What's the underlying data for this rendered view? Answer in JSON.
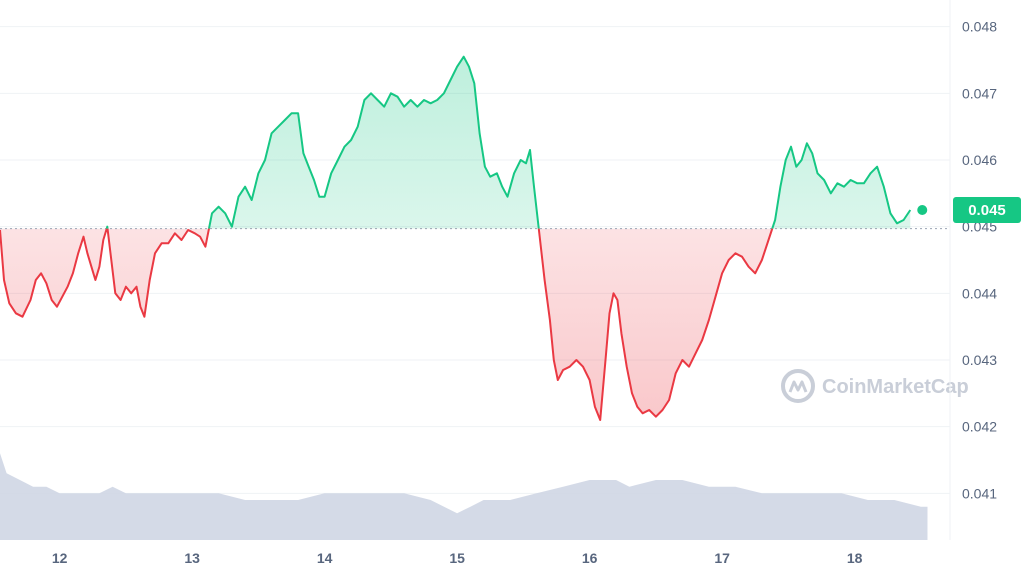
{
  "colors": {
    "up": "#16c784",
    "down": "#ea3943",
    "volume": "#cfd6e4",
    "grid": "#eff2f5",
    "baseline": "#9aa3b2",
    "axis_text": "#58667e",
    "watermark": "#c9ced8"
  },
  "watermark": {
    "text": "CoinMarketCap",
    "icon": "coinmarketcap-logo-icon"
  },
  "price_badge": {
    "label": "0.045"
  },
  "chart_data": {
    "type": "line",
    "title": "",
    "xlabel": "",
    "ylabel": "",
    "baseline": 0.04497,
    "ylim": [
      0.0403,
      0.0484
    ],
    "xlim": [
      11.55,
      18.72
    ],
    "x_ticks": [
      {
        "value": 12,
        "label": "12"
      },
      {
        "value": 13,
        "label": "13"
      },
      {
        "value": 14,
        "label": "14"
      },
      {
        "value": 15,
        "label": "15"
      },
      {
        "value": 16,
        "label": "16"
      },
      {
        "value": 17,
        "label": "17"
      },
      {
        "value": 18,
        "label": "18"
      }
    ],
    "y_ticks": [
      {
        "value": 0.048,
        "label": "0.048"
      },
      {
        "value": 0.047,
        "label": "0.047"
      },
      {
        "value": 0.046,
        "label": "0.046"
      },
      {
        "value": 0.045,
        "label": "0.045"
      },
      {
        "value": 0.044,
        "label": "0.044"
      },
      {
        "value": 0.043,
        "label": "0.043"
      },
      {
        "value": 0.042,
        "label": "0.042"
      },
      {
        "value": 0.041,
        "label": "0.041"
      }
    ],
    "grid": true,
    "series": [
      {
        "points": [
          [
            11.55,
            0.04495
          ],
          [
            11.58,
            0.0442
          ],
          [
            11.62,
            0.04385
          ],
          [
            11.67,
            0.0437
          ],
          [
            11.72,
            0.04365
          ],
          [
            11.78,
            0.0439
          ],
          [
            11.82,
            0.0442
          ],
          [
            11.86,
            0.0443
          ],
          [
            11.9,
            0.04415
          ],
          [
            11.94,
            0.0439
          ],
          [
            11.98,
            0.0438
          ],
          [
            12.02,
            0.04395
          ],
          [
            12.06,
            0.0441
          ],
          [
            12.1,
            0.0443
          ],
          [
            12.14,
            0.0446
          ],
          [
            12.18,
            0.04485
          ],
          [
            12.21,
            0.0446
          ],
          [
            12.24,
            0.0444
          ],
          [
            12.27,
            0.0442
          ],
          [
            12.3,
            0.0444
          ],
          [
            12.33,
            0.0448
          ],
          [
            12.36,
            0.045
          ],
          [
            12.39,
            0.0445
          ],
          [
            12.42,
            0.044
          ],
          [
            12.46,
            0.0439
          ],
          [
            12.5,
            0.0441
          ],
          [
            12.54,
            0.044
          ],
          [
            12.58,
            0.0441
          ],
          [
            12.61,
            0.0438
          ],
          [
            12.64,
            0.04365
          ],
          [
            12.68,
            0.0442
          ],
          [
            12.72,
            0.0446
          ],
          [
            12.77,
            0.04475
          ],
          [
            12.82,
            0.04475
          ],
          [
            12.87,
            0.0449
          ],
          [
            12.92,
            0.0448
          ],
          [
            12.97,
            0.04495
          ],
          [
            13.02,
            0.0449
          ],
          [
            13.06,
            0.04485
          ],
          [
            13.1,
            0.0447
          ],
          [
            13.15,
            0.0452
          ],
          [
            13.2,
            0.0453
          ],
          [
            13.25,
            0.0452
          ],
          [
            13.3,
            0.045
          ],
          [
            13.35,
            0.04545
          ],
          [
            13.4,
            0.0456
          ],
          [
            13.45,
            0.0454
          ],
          [
            13.5,
            0.0458
          ],
          [
            13.55,
            0.046
          ],
          [
            13.6,
            0.0464
          ],
          [
            13.65,
            0.0465
          ],
          [
            13.7,
            0.0466
          ],
          [
            13.75,
            0.0467
          ],
          [
            13.8,
            0.0467
          ],
          [
            13.84,
            0.0461
          ],
          [
            13.88,
            0.0459
          ],
          [
            13.92,
            0.0457
          ],
          [
            13.96,
            0.04545
          ],
          [
            14.0,
            0.04545
          ],
          [
            14.05,
            0.0458
          ],
          [
            14.1,
            0.046
          ],
          [
            14.15,
            0.0462
          ],
          [
            14.2,
            0.0463
          ],
          [
            14.25,
            0.0465
          ],
          [
            14.3,
            0.0469
          ],
          [
            14.35,
            0.047
          ],
          [
            14.4,
            0.0469
          ],
          [
            14.45,
            0.0468
          ],
          [
            14.5,
            0.047
          ],
          [
            14.55,
            0.04695
          ],
          [
            14.6,
            0.0468
          ],
          [
            14.65,
            0.0469
          ],
          [
            14.7,
            0.0468
          ],
          [
            14.75,
            0.0469
          ],
          [
            14.8,
            0.04685
          ],
          [
            14.85,
            0.0469
          ],
          [
            14.9,
            0.047
          ],
          [
            14.95,
            0.0472
          ],
          [
            15.0,
            0.0474
          ],
          [
            15.05,
            0.04755
          ],
          [
            15.09,
            0.0474
          ],
          [
            15.13,
            0.04715
          ],
          [
            15.17,
            0.0464
          ],
          [
            15.21,
            0.0459
          ],
          [
            15.25,
            0.04575
          ],
          [
            15.3,
            0.0458
          ],
          [
            15.34,
            0.0456
          ],
          [
            15.38,
            0.04545
          ],
          [
            15.43,
            0.0458
          ],
          [
            15.48,
            0.046
          ],
          [
            15.52,
            0.04595
          ],
          [
            15.55,
            0.04615
          ],
          [
            15.58,
            0.0456
          ],
          [
            15.62,
            0.0449
          ],
          [
            15.66,
            0.0442
          ],
          [
            15.7,
            0.0436
          ],
          [
            15.73,
            0.043
          ],
          [
            15.76,
            0.0427
          ],
          [
            15.8,
            0.04285
          ],
          [
            15.85,
            0.0429
          ],
          [
            15.9,
            0.043
          ],
          [
            15.95,
            0.0429
          ],
          [
            16.0,
            0.0427
          ],
          [
            16.04,
            0.0423
          ],
          [
            16.08,
            0.0421
          ],
          [
            16.12,
            0.043
          ],
          [
            16.15,
            0.0437
          ],
          [
            16.18,
            0.044
          ],
          [
            16.21,
            0.0439
          ],
          [
            16.24,
            0.0434
          ],
          [
            16.28,
            0.0429
          ],
          [
            16.32,
            0.0425
          ],
          [
            16.36,
            0.0423
          ],
          [
            16.4,
            0.0422
          ],
          [
            16.45,
            0.04225
          ],
          [
            16.5,
            0.04215
          ],
          [
            16.55,
            0.04225
          ],
          [
            16.6,
            0.0424
          ],
          [
            16.65,
            0.0428
          ],
          [
            16.7,
            0.043
          ],
          [
            16.75,
            0.0429
          ],
          [
            16.8,
            0.0431
          ],
          [
            16.85,
            0.0433
          ],
          [
            16.9,
            0.0436
          ],
          [
            16.95,
            0.04395
          ],
          [
            17.0,
            0.0443
          ],
          [
            17.05,
            0.0445
          ],
          [
            17.1,
            0.0446
          ],
          [
            17.15,
            0.04455
          ],
          [
            17.2,
            0.0444
          ],
          [
            17.25,
            0.0443
          ],
          [
            17.3,
            0.0445
          ],
          [
            17.35,
            0.0448
          ],
          [
            17.4,
            0.0451
          ],
          [
            17.44,
            0.0456
          ],
          [
            17.48,
            0.046
          ],
          [
            17.52,
            0.0462
          ],
          [
            17.56,
            0.0459
          ],
          [
            17.6,
            0.046
          ],
          [
            17.64,
            0.04625
          ],
          [
            17.68,
            0.0461
          ],
          [
            17.72,
            0.0458
          ],
          [
            17.77,
            0.0457
          ],
          [
            17.82,
            0.0455
          ],
          [
            17.87,
            0.04565
          ],
          [
            17.92,
            0.0456
          ],
          [
            17.97,
            0.0457
          ],
          [
            18.02,
            0.04565
          ],
          [
            18.07,
            0.04565
          ],
          [
            18.12,
            0.0458
          ],
          [
            18.17,
            0.0459
          ],
          [
            18.22,
            0.0456
          ],
          [
            18.27,
            0.0452
          ],
          [
            18.32,
            0.04505
          ],
          [
            18.37,
            0.0451
          ],
          [
            18.42,
            0.04525
          ]
        ]
      }
    ],
    "volume": {
      "points": [
        [
          11.55,
          0.0416
        ],
        [
          11.6,
          0.0413
        ],
        [
          11.7,
          0.0412
        ],
        [
          11.8,
          0.0411
        ],
        [
          11.9,
          0.0411
        ],
        [
          12.0,
          0.041
        ],
        [
          12.1,
          0.041
        ],
        [
          12.2,
          0.041
        ],
        [
          12.3,
          0.041
        ],
        [
          12.4,
          0.0411
        ],
        [
          12.5,
          0.041
        ],
        [
          12.6,
          0.041
        ],
        [
          12.7,
          0.041
        ],
        [
          12.8,
          0.041
        ],
        [
          12.9,
          0.041
        ],
        [
          13.0,
          0.041
        ],
        [
          13.2,
          0.041
        ],
        [
          13.4,
          0.0409
        ],
        [
          13.6,
          0.0409
        ],
        [
          13.8,
          0.0409
        ],
        [
          14.0,
          0.041
        ],
        [
          14.2,
          0.041
        ],
        [
          14.4,
          0.041
        ],
        [
          14.6,
          0.041
        ],
        [
          14.8,
          0.0409
        ],
        [
          15.0,
          0.0407
        ],
        [
          15.1,
          0.0408
        ],
        [
          15.2,
          0.0409
        ],
        [
          15.4,
          0.0409
        ],
        [
          15.6,
          0.041
        ],
        [
          15.8,
          0.0411
        ],
        [
          16.0,
          0.0412
        ],
        [
          16.2,
          0.0412
        ],
        [
          16.3,
          0.0411
        ],
        [
          16.5,
          0.0412
        ],
        [
          16.7,
          0.0412
        ],
        [
          16.9,
          0.0411
        ],
        [
          17.1,
          0.0411
        ],
        [
          17.3,
          0.041
        ],
        [
          17.5,
          0.041
        ],
        [
          17.7,
          0.041
        ],
        [
          17.9,
          0.041
        ],
        [
          18.1,
          0.0409
        ],
        [
          18.3,
          0.0409
        ],
        [
          18.5,
          0.0408
        ],
        [
          18.55,
          0.0408
        ]
      ]
    }
  }
}
